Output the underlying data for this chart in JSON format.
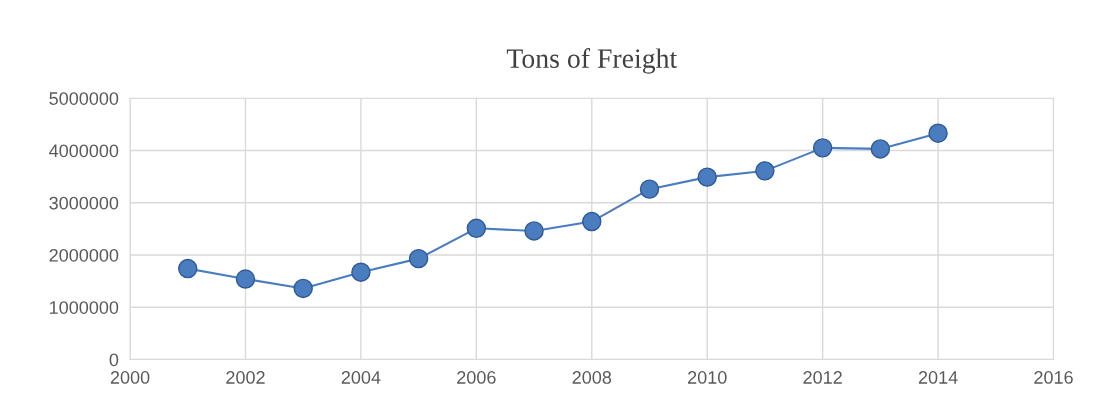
{
  "chart_data": {
    "type": "line",
    "title": "Tons of Freight",
    "x": [
      2001,
      2002,
      2003,
      2004,
      2005,
      2006,
      2007,
      2008,
      2009,
      2010,
      2011,
      2012,
      2013,
      2014
    ],
    "series": [
      {
        "color": "#4a7cc0",
        "values": [
          1740000,
          1540000,
          1360000,
          1670000,
          1930000,
          2510000,
          2460000,
          2640000,
          3260000,
          3490000,
          3610000,
          4050000,
          4030000,
          4330000
        ]
      }
    ],
    "xlim": [
      2000,
      2016
    ],
    "xticks": [
      2000,
      2002,
      2004,
      2006,
      2008,
      2010,
      2012,
      2014,
      2016
    ],
    "ylim": [
      0,
      5000000
    ],
    "yticks": [
      0,
      1000000,
      2000000,
      3000000,
      4000000,
      5000000
    ],
    "grid": true,
    "marker": "circle",
    "line_style": "solid"
  }
}
